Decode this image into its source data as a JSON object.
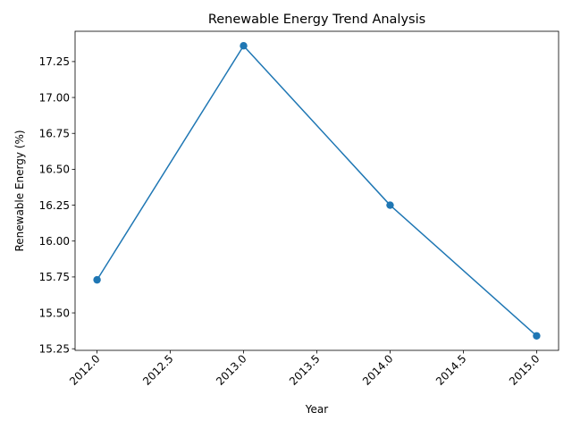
{
  "chart_data": {
    "type": "line",
    "title": "Renewable Energy Trend Analysis",
    "xlabel": "Year",
    "ylabel": "Renewable Energy (%)",
    "x": [
      2012,
      2013,
      2014,
      2015
    ],
    "series": [
      {
        "values": [
          15.73,
          17.36,
          16.25,
          15.34
        ],
        "color": "#1f77b4",
        "marker": "circle"
      }
    ],
    "xlim": [
      2011.85,
      2015.15
    ],
    "ylim": [
      15.239,
      17.461
    ],
    "x_ticks": [
      2012.0,
      2012.5,
      2013.0,
      2013.5,
      2014.0,
      2014.5,
      2015.0
    ],
    "x_tick_labels": [
      "2012.0",
      "2012.5",
      "2013.0",
      "2013.5",
      "2014.0",
      "2014.5",
      "2015.0"
    ],
    "y_ticks": [
      15.25,
      15.5,
      15.75,
      16.0,
      16.25,
      16.5,
      16.75,
      17.0,
      17.25
    ],
    "y_tick_labels": [
      "15.25",
      "15.50",
      "15.75",
      "16.00",
      "16.25",
      "16.50",
      "16.75",
      "17.00",
      "17.25"
    ],
    "grid": false,
    "legend": "none"
  }
}
